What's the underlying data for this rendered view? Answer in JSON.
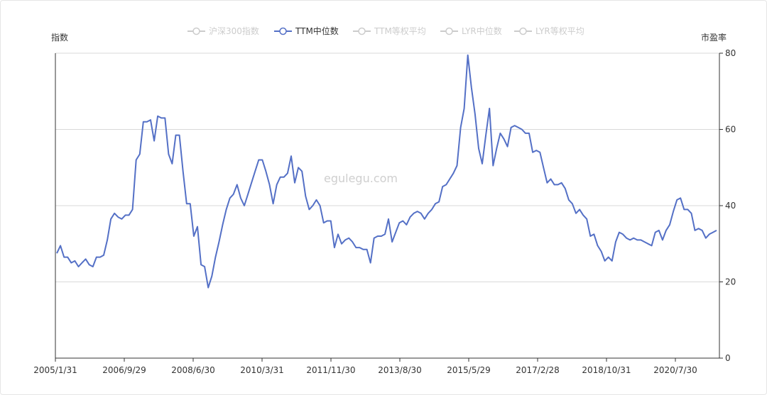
{
  "chart_data": {
    "type": "line",
    "watermark": "egulegu.com",
    "y_left_label": "指数",
    "y_right_label": "市盈率",
    "legend": [
      {
        "name": "沪深300指数",
        "active": false
      },
      {
        "name": "TTM中位数",
        "active": true
      },
      {
        "name": "TTM等权平均",
        "active": false
      },
      {
        "name": "LYR中位数",
        "active": false
      },
      {
        "name": "LYR等权平均",
        "active": false
      }
    ],
    "x_tick_labels": [
      "2005/1/31",
      "2006/9/29",
      "2008/6/30",
      "2010/3/31",
      "2011/11/30",
      "2013/8/30",
      "2015/5/29",
      "2017/2/28",
      "2018/10/31",
      "2020/7/30"
    ],
    "ylim": [
      0,
      80
    ],
    "y_ticks": [
      0,
      20,
      40,
      60,
      80
    ],
    "grid": true,
    "colors": {
      "series": "#5470c6",
      "inactive": "#cccccc",
      "grid": "#d9d9d9",
      "axis": "#333333"
    },
    "series": [
      {
        "name": "TTM中位数",
        "values": [
          27.5,
          29.5,
          26.5,
          26.5,
          25,
          25.5,
          24,
          25,
          26,
          24.5,
          24,
          26.5,
          26.5,
          27,
          31,
          36.5,
          38,
          37,
          36.5,
          37.5,
          37.5,
          39,
          52,
          53.5,
          62,
          62,
          62.5,
          57,
          63.5,
          63,
          63,
          53.5,
          51,
          58.5,
          58.5,
          49,
          40.5,
          40.5,
          32,
          34.5,
          24.5,
          24,
          18.5,
          21.5,
          26.5,
          30.5,
          35,
          39,
          42,
          43,
          45.5,
          42,
          40,
          43,
          46,
          49,
          52,
          52,
          49,
          45.5,
          40.5,
          45.5,
          47.5,
          47.5,
          48.5,
          53,
          46,
          50,
          49,
          42.5,
          39,
          40,
          41.5,
          40,
          35.5,
          36,
          36,
          29,
          32.5,
          30,
          31,
          31.5,
          30.5,
          29,
          29,
          28.5,
          28.5,
          25,
          31.5,
          32,
          32,
          32.5,
          36.5,
          30.5,
          33,
          35.5,
          36,
          35,
          37,
          38,
          38.5,
          38,
          36.5,
          38,
          39,
          40.5,
          41,
          45,
          45.5,
          47,
          48.5,
          50.5,
          60.5,
          65.5,
          79.5,
          71,
          64,
          55,
          51,
          58.5,
          65.5,
          50.5,
          55,
          59,
          57.5,
          55.5,
          60.5,
          61,
          60.5,
          60,
          59,
          59,
          54,
          54.5,
          54,
          50,
          46,
          47,
          45.5,
          45.5,
          46,
          44.5,
          41.5,
          40.5,
          38,
          39,
          37.5,
          36.5,
          32,
          32.5,
          29.5,
          28,
          25.5,
          26.5,
          25.5,
          30.5,
          33,
          32.5,
          31.5,
          31,
          31.5,
          31,
          31,
          30.5,
          30,
          29.5,
          33,
          33.5,
          31,
          33.5,
          35,
          38.5,
          41.5,
          42,
          39,
          39,
          38,
          33.5,
          34,
          33.5,
          31.5,
          32.5,
          33,
          33.5
        ]
      }
    ]
  }
}
